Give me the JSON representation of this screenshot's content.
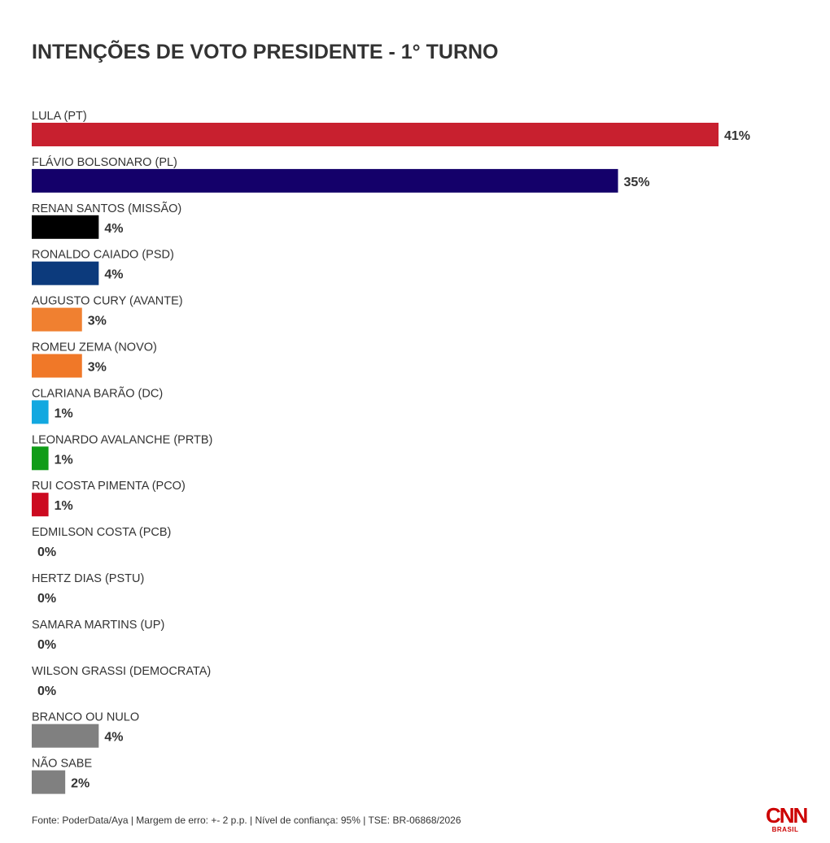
{
  "chart_data": {
    "type": "bar",
    "orientation": "horizontal",
    "title": "INTENÇÕES DE VOTO PRESIDENTE - 1° TURNO",
    "value_suffix": "%",
    "xlim": [
      0,
      41
    ],
    "grid": false,
    "legend": "none",
    "categories": [
      "LULA (PT)",
      "FLÁVIO BOLSONARO (PL)",
      "RENAN SANTOS (MISSÃO)",
      "RONALDO CAIADO (PSD)",
      "AUGUSTO CURY (AVANTE)",
      "ROMEU ZEMA (NOVO)",
      "CLARIANA BARÃO (DC)",
      "LEONARDO AVALANCHE (PRTB)",
      "RUI COSTA PIMENTA (PCO)",
      "EDMILSON COSTA (PCB)",
      "HERTZ DIAS (PSTU)",
      "SAMARA MARTINS (UP)",
      "WILSON GRASSI (DEMOCRATA)",
      "BRANCO OU NULO",
      "NÃO SABE"
    ],
    "values": [
      41,
      35,
      4,
      4,
      3,
      3,
      1,
      1,
      1,
      0,
      0,
      0,
      0,
      4,
      2
    ],
    "value_labels": [
      "41%",
      "35%",
      "4%",
      "4%",
      "3%",
      "3%",
      "1%",
      "1%",
      "1%",
      "0%",
      "0%",
      "0%",
      "0%",
      "4%",
      "2%"
    ],
    "colors": [
      "#c8202f",
      "#14006a",
      "#000000",
      "#0c3a7c",
      "#f08030",
      "#f07828",
      "#12a8e0",
      "#109c18",
      "#cc0a20",
      "#808080",
      "#808080",
      "#808080",
      "#808080",
      "#808080",
      "#808080"
    ]
  },
  "footer": {
    "source": "Fonte: PoderData/Aya | Margem de erro: +- 2 p.p. | Nível de confiança: 95% | TSE: BR-06868/2026"
  },
  "logo": {
    "text": "CNN",
    "subtext": "BRASIL",
    "color": "#cc0000"
  }
}
